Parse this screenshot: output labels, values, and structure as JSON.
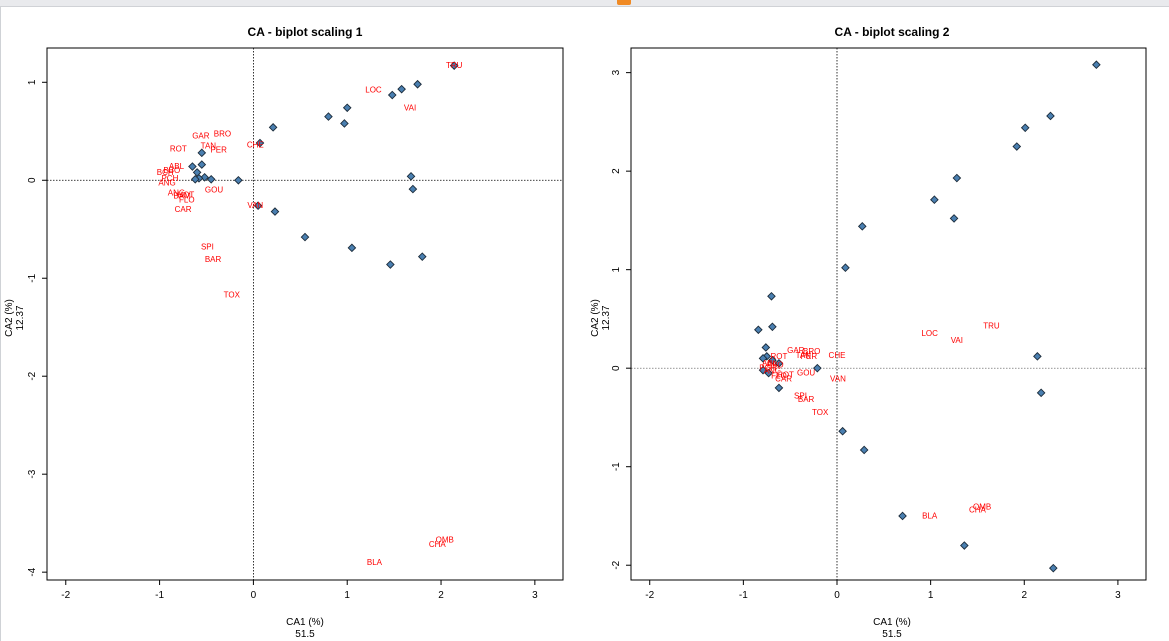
{
  "chart_data": [
    {
      "type": "scatter",
      "title": "CA - biplot scaling 1",
      "xlabel": "CA1 (%)",
      "xlabel_value": "51.5",
      "ylabel": "CA2 (%)",
      "ylabel_value": "12.37",
      "xlim": [
        -2.2,
        3.3
      ],
      "ylim": [
        -4.08,
        1.35
      ],
      "xticks": [
        -2,
        -1,
        0,
        1,
        2,
        3
      ],
      "yticks": [
        -4,
        -3,
        -2,
        -1,
        0,
        1
      ],
      "reference_lines": "dotted at x=0 and y=0",
      "site_color": "#4a7fb0",
      "species_color": "#ff0000",
      "sites": [
        [
          2.14,
          1.17
        ],
        [
          1.75,
          0.98
        ],
        [
          1.58,
          0.93
        ],
        [
          1.48,
          0.87
        ],
        [
          1.0,
          0.74
        ],
        [
          0.8,
          0.65
        ],
        [
          0.97,
          0.58
        ],
        [
          0.21,
          0.54
        ],
        [
          0.07,
          0.38
        ],
        [
          -0.55,
          0.28
        ],
        [
          -0.65,
          0.14
        ],
        [
          -0.55,
          0.16
        ],
        [
          -0.6,
          0.08
        ],
        [
          -0.52,
          0.03
        ],
        [
          -0.58,
          0.02
        ],
        [
          -0.62,
          0.01
        ],
        [
          -0.45,
          0.01
        ],
        [
          -0.16,
          0.0
        ],
        [
          1.68,
          0.04
        ],
        [
          1.7,
          -0.09
        ],
        [
          0.05,
          -0.26
        ],
        [
          0.23,
          -0.32
        ],
        [
          0.55,
          -0.58
        ],
        [
          1.05,
          -0.69
        ],
        [
          1.8,
          -0.78
        ],
        [
          1.46,
          -0.86
        ]
      ],
      "species": [
        {
          "label": "TRU",
          "x": 2.14,
          "y": 1.17
        },
        {
          "label": "LOC",
          "x": 1.28,
          "y": 0.92
        },
        {
          "label": "VAI",
          "x": 1.67,
          "y": 0.74
        },
        {
          "label": "BRO",
          "x": -0.33,
          "y": 0.47
        },
        {
          "label": "GAR",
          "x": -0.56,
          "y": 0.45
        },
        {
          "label": "TAN",
          "x": -0.48,
          "y": 0.35
        },
        {
          "label": "PER",
          "x": -0.37,
          "y": 0.31
        },
        {
          "label": "CHE",
          "x": 0.02,
          "y": 0.36
        },
        {
          "label": "ROT",
          "x": -0.8,
          "y": 0.32
        },
        {
          "label": "ABL",
          "x": -0.82,
          "y": 0.14
        },
        {
          "label": "BBO",
          "x": -0.87,
          "y": 0.1
        },
        {
          "label": "BCH",
          "x": -0.94,
          "y": 0.08
        },
        {
          "label": "PCH",
          "x": -0.89,
          "y": 0.02
        },
        {
          "label": "ANG",
          "x": -0.92,
          "y": -0.03
        },
        {
          "label": "GOU",
          "x": -0.42,
          "y": -0.1
        },
        {
          "label": "ANG",
          "x": -0.82,
          "y": -0.13
        },
        {
          "label": "HOT",
          "x": -0.72,
          "y": -0.15
        },
        {
          "label": "BAM",
          "x": -0.76,
          "y": -0.16
        },
        {
          "label": "FLO",
          "x": -0.71,
          "y": -0.2
        },
        {
          "label": "CAR",
          "x": -0.75,
          "y": -0.3
        },
        {
          "label": "VAN",
          "x": 0.02,
          "y": -0.26
        },
        {
          "label": "SPI",
          "x": -0.49,
          "y": -0.68
        },
        {
          "label": "BAR",
          "x": -0.43,
          "y": -0.81
        },
        {
          "label": "TOX",
          "x": -0.23,
          "y": -1.17
        },
        {
          "label": "OMB",
          "x": 2.04,
          "y": -3.67
        },
        {
          "label": "CHA",
          "x": 1.96,
          "y": -3.72
        },
        {
          "label": "BLA",
          "x": 1.29,
          "y": -3.9
        }
      ]
    },
    {
      "type": "scatter",
      "title": "CA - biplot scaling 2",
      "xlabel": "CA1 (%)",
      "xlabel_value": "51.5",
      "ylabel": "CA2 (%)",
      "ylabel_value": "12.37",
      "xlim": [
        -2.2,
        3.3
      ],
      "ylim": [
        -2.15,
        3.25
      ],
      "xticks": [
        -2,
        -1,
        0,
        1,
        2,
        3
      ],
      "yticks": [
        -2,
        -1,
        0,
        1,
        2,
        3
      ],
      "reference_lines": "dotted at x=0 and y=0",
      "site_color": "#4a7fb0",
      "species_color": "#ff0000",
      "sites": [
        [
          2.77,
          3.08
        ],
        [
          2.28,
          2.56
        ],
        [
          2.01,
          2.44
        ],
        [
          1.92,
          2.25
        ],
        [
          1.28,
          1.93
        ],
        [
          1.04,
          1.71
        ],
        [
          1.25,
          1.52
        ],
        [
          0.27,
          1.44
        ],
        [
          0.09,
          1.02
        ],
        [
          -0.7,
          0.73
        ],
        [
          -0.69,
          0.42
        ],
        [
          -0.84,
          0.39
        ],
        [
          -0.76,
          0.21
        ],
        [
          -0.75,
          0.12
        ],
        [
          -0.79,
          0.1
        ],
        [
          -0.69,
          0.08
        ],
        [
          -0.62,
          0.05
        ],
        [
          -0.79,
          -0.02
        ],
        [
          -0.73,
          -0.05
        ],
        [
          -0.21,
          0.0
        ],
        [
          -0.62,
          -0.2
        ],
        [
          0.06,
          -0.64
        ],
        [
          0.29,
          -0.83
        ],
        [
          2.14,
          0.12
        ],
        [
          2.18,
          -0.25
        ],
        [
          0.7,
          -1.5
        ],
        [
          1.36,
          -1.8
        ],
        [
          2.31,
          -2.03
        ]
      ],
      "species": [
        {
          "label": "TRU",
          "x": 1.65,
          "y": 0.43
        },
        {
          "label": "LOC",
          "x": 0.99,
          "y": 0.35
        },
        {
          "label": "VAI",
          "x": 1.28,
          "y": 0.28
        },
        {
          "label": "GAR",
          "x": -0.44,
          "y": 0.18
        },
        {
          "label": "BRO",
          "x": -0.27,
          "y": 0.17
        },
        {
          "label": "TAN",
          "x": -0.36,
          "y": 0.13
        },
        {
          "label": "PER",
          "x": -0.3,
          "y": 0.12
        },
        {
          "label": "CHE",
          "x": 0.0,
          "y": 0.13
        },
        {
          "label": "ROT",
          "x": -0.62,
          "y": 0.12
        },
        {
          "label": "ABL",
          "x": -0.72,
          "y": 0.05
        },
        {
          "label": "BBO",
          "x": -0.66,
          "y": 0.03
        },
        {
          "label": "PCH",
          "x": -0.74,
          "y": 0.0
        },
        {
          "label": "ANG",
          "x": -0.69,
          "y": -0.03
        },
        {
          "label": "GOU",
          "x": -0.33,
          "y": -0.05
        },
        {
          "label": "HOT",
          "x": -0.55,
          "y": -0.07
        },
        {
          "label": "FLO",
          "x": -0.62,
          "y": -0.08
        },
        {
          "label": "CAR",
          "x": -0.57,
          "y": -0.11
        },
        {
          "label": "VAN",
          "x": 0.01,
          "y": -0.11
        },
        {
          "label": "SPI",
          "x": -0.39,
          "y": -0.28
        },
        {
          "label": "BAR",
          "x": -0.33,
          "y": -0.32
        },
        {
          "label": "TOX",
          "x": -0.18,
          "y": -0.45
        },
        {
          "label": "OMB",
          "x": 1.55,
          "y": -1.41
        },
        {
          "label": "CHA",
          "x": 1.5,
          "y": -1.44
        },
        {
          "label": "BLA",
          "x": 0.99,
          "y": -1.5
        }
      ]
    }
  ]
}
